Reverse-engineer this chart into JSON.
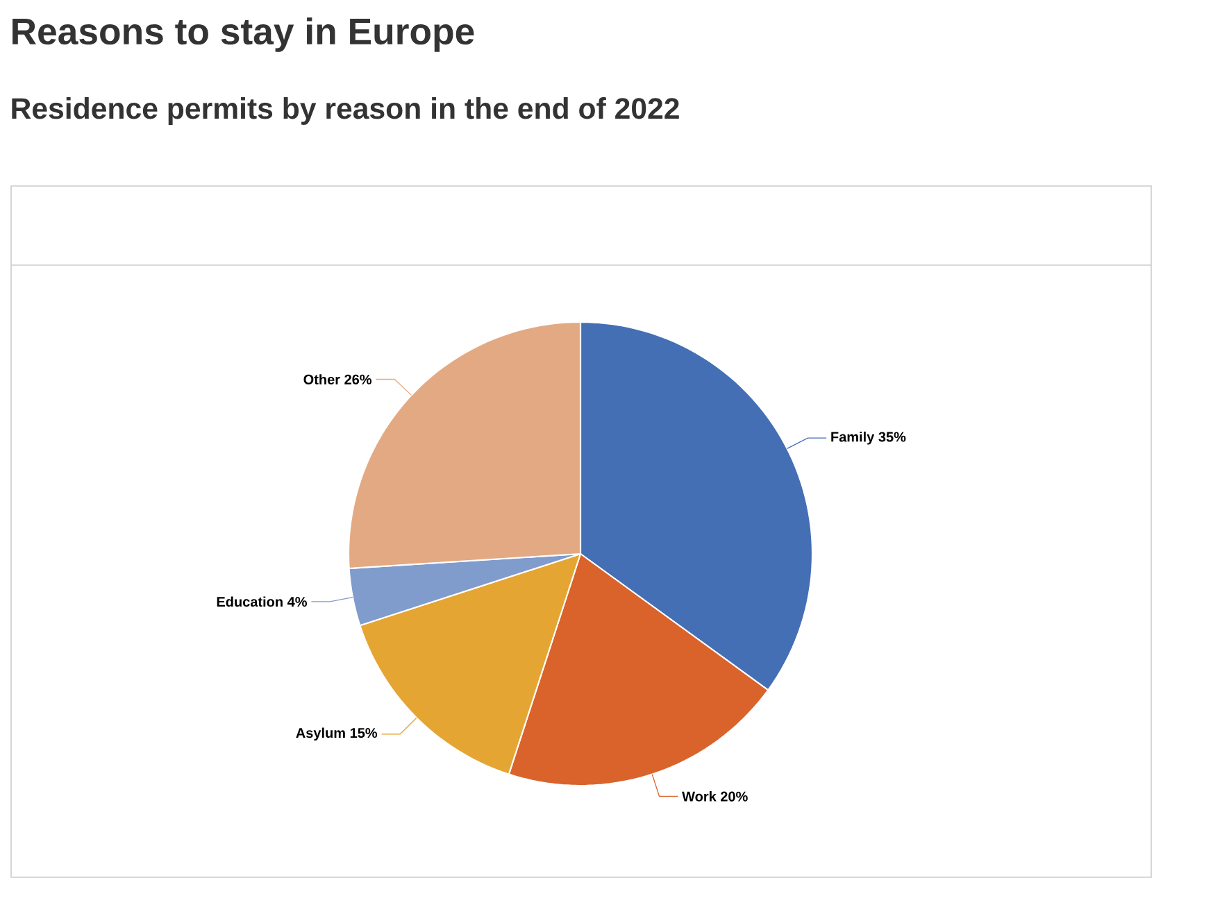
{
  "chart_data": {
    "type": "pie",
    "title": "Reasons to stay in Europe",
    "subtitle": "Residence permits by reason in the end of 2022",
    "categories": [
      "Family",
      "Work",
      "Asylum",
      "Education",
      "Other"
    ],
    "values": [
      35,
      20,
      15,
      4,
      26
    ],
    "value_labels": [
      "35%",
      "20%",
      "15%",
      "4%",
      "26%"
    ],
    "colors": [
      "#456fb4",
      "#d9632b",
      "#e5a532",
      "#7f9ccd",
      "#e3a983"
    ]
  }
}
